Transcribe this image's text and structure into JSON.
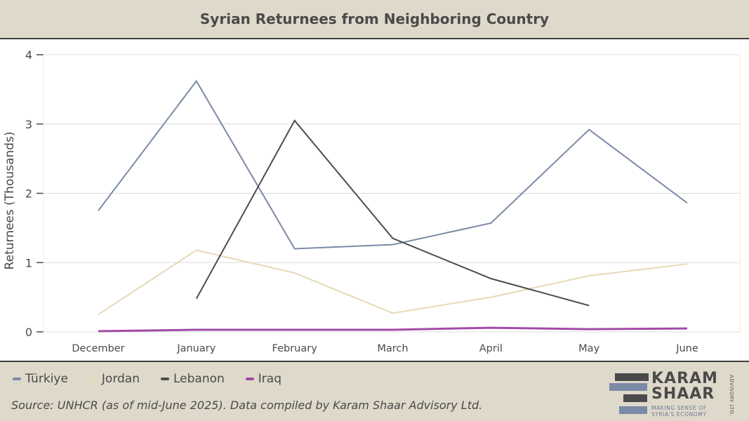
{
  "header": {
    "title": "Syrian Returnees from Neighboring Country"
  },
  "chart_data": {
    "type": "line",
    "title": "Syrian Returnees from Neighboring Country",
    "xlabel": "",
    "ylabel": "Returnees (Thousands)",
    "ylim": [
      0,
      4
    ],
    "yticks": [
      "0",
      "1",
      "2",
      "3",
      "4"
    ],
    "grid": true,
    "legend_position": "bottom-left",
    "categories": [
      "December",
      "January",
      "February",
      "March",
      "April",
      "May",
      "June"
    ],
    "series": [
      {
        "name": "Türkiye",
        "color": "#7b8aa6",
        "values": [
          1.75,
          3.62,
          1.2,
          1.26,
          1.57,
          2.92,
          1.86
        ]
      },
      {
        "name": "Jordan",
        "color": "#e6d9b8",
        "values": [
          0.25,
          1.18,
          0.85,
          0.27,
          0.5,
          0.81,
          0.98
        ]
      },
      {
        "name": "Lebanon",
        "color": "#4d4d4d",
        "values": [
          null,
          0.48,
          3.05,
          1.35,
          0.77,
          0.38,
          null
        ]
      },
      {
        "name": "Iraq",
        "color": "#a24ba8",
        "values": [
          0.01,
          0.03,
          0.03,
          0.03,
          0.06,
          0.04,
          0.05
        ]
      }
    ]
  },
  "legend": {
    "items": [
      {
        "label": "Türkiye",
        "color": "#7b8aa6"
      },
      {
        "label": "Jordan",
        "color": "#e6d9b8"
      },
      {
        "label": "Lebanon",
        "color": "#4d4d4d"
      },
      {
        "label": "Iraq",
        "color": "#a24ba8"
      }
    ]
  },
  "footer": {
    "source": "Source: UNHCR (as of mid-June 2025). Data compiled by Karam Shaar Advisory Ltd."
  },
  "logo": {
    "line1": "KARAM",
    "line2": "SHAAR",
    "tagline1": "MAKING SENSE OF",
    "tagline2": "SYRIA'S ECONOMY",
    "side": "ADVISORY LTD.",
    "bar_colors": [
      "#4a4a4a",
      "#7b8aa6",
      "#4a4a4a",
      "#7b8aa6"
    ]
  }
}
